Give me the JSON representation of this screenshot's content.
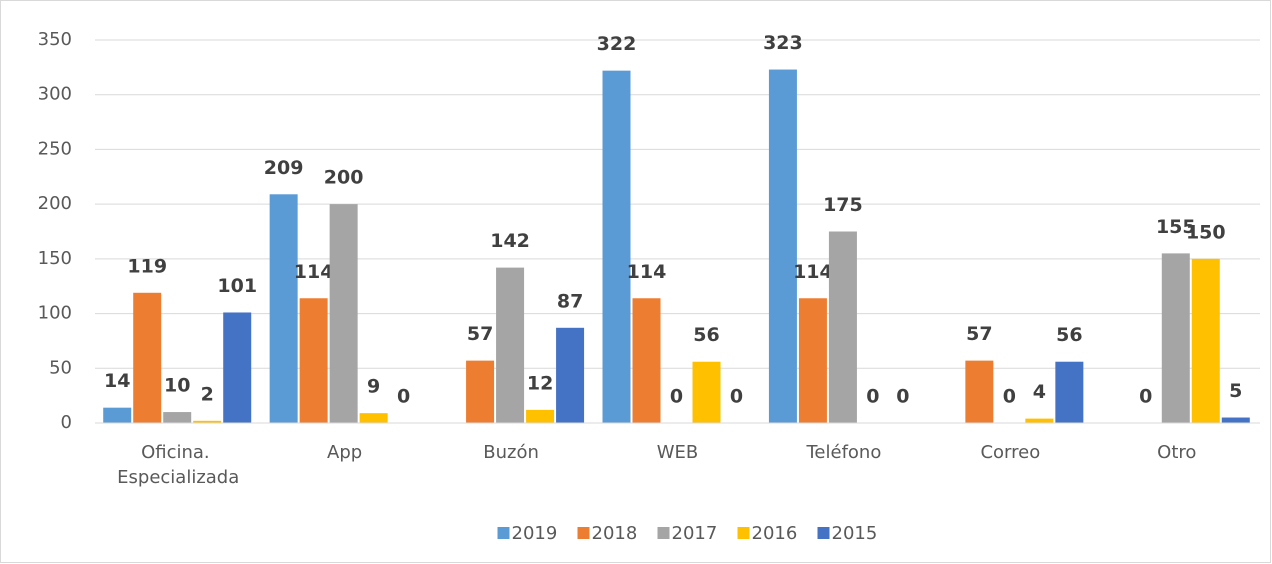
{
  "chart_data": {
    "type": "bar",
    "categories": [
      "Oficina. Especializada",
      "App",
      "Buzón",
      "WEB",
      "Teléfono",
      "Correo",
      "Otro"
    ],
    "series": [
      {
        "name": "2019",
        "color": "#5b9bd5",
        "values": [
          14,
          209,
          null,
          322,
          323,
          null,
          null
        ]
      },
      {
        "name": "2018",
        "color": "#ed7d31",
        "values": [
          119,
          114,
          57,
          114,
          114,
          57,
          0
        ]
      },
      {
        "name": "2017",
        "color": "#a5a5a5",
        "values": [
          10,
          200,
          142,
          0,
          175,
          0,
          155
        ]
      },
      {
        "name": "2016",
        "color": "#ffc000",
        "values": [
          2,
          9,
          12,
          56,
          0,
          4,
          150
        ]
      },
      {
        "name": "2015",
        "color": "#4472c4",
        "values": [
          101,
          0,
          87,
          0,
          0,
          56,
          5
        ]
      }
    ],
    "ylim": [
      0,
      350
    ],
    "yticks": [
      0,
      50,
      100,
      150,
      200,
      250,
      300,
      350
    ],
    "grid": true,
    "legend": "bottom"
  }
}
